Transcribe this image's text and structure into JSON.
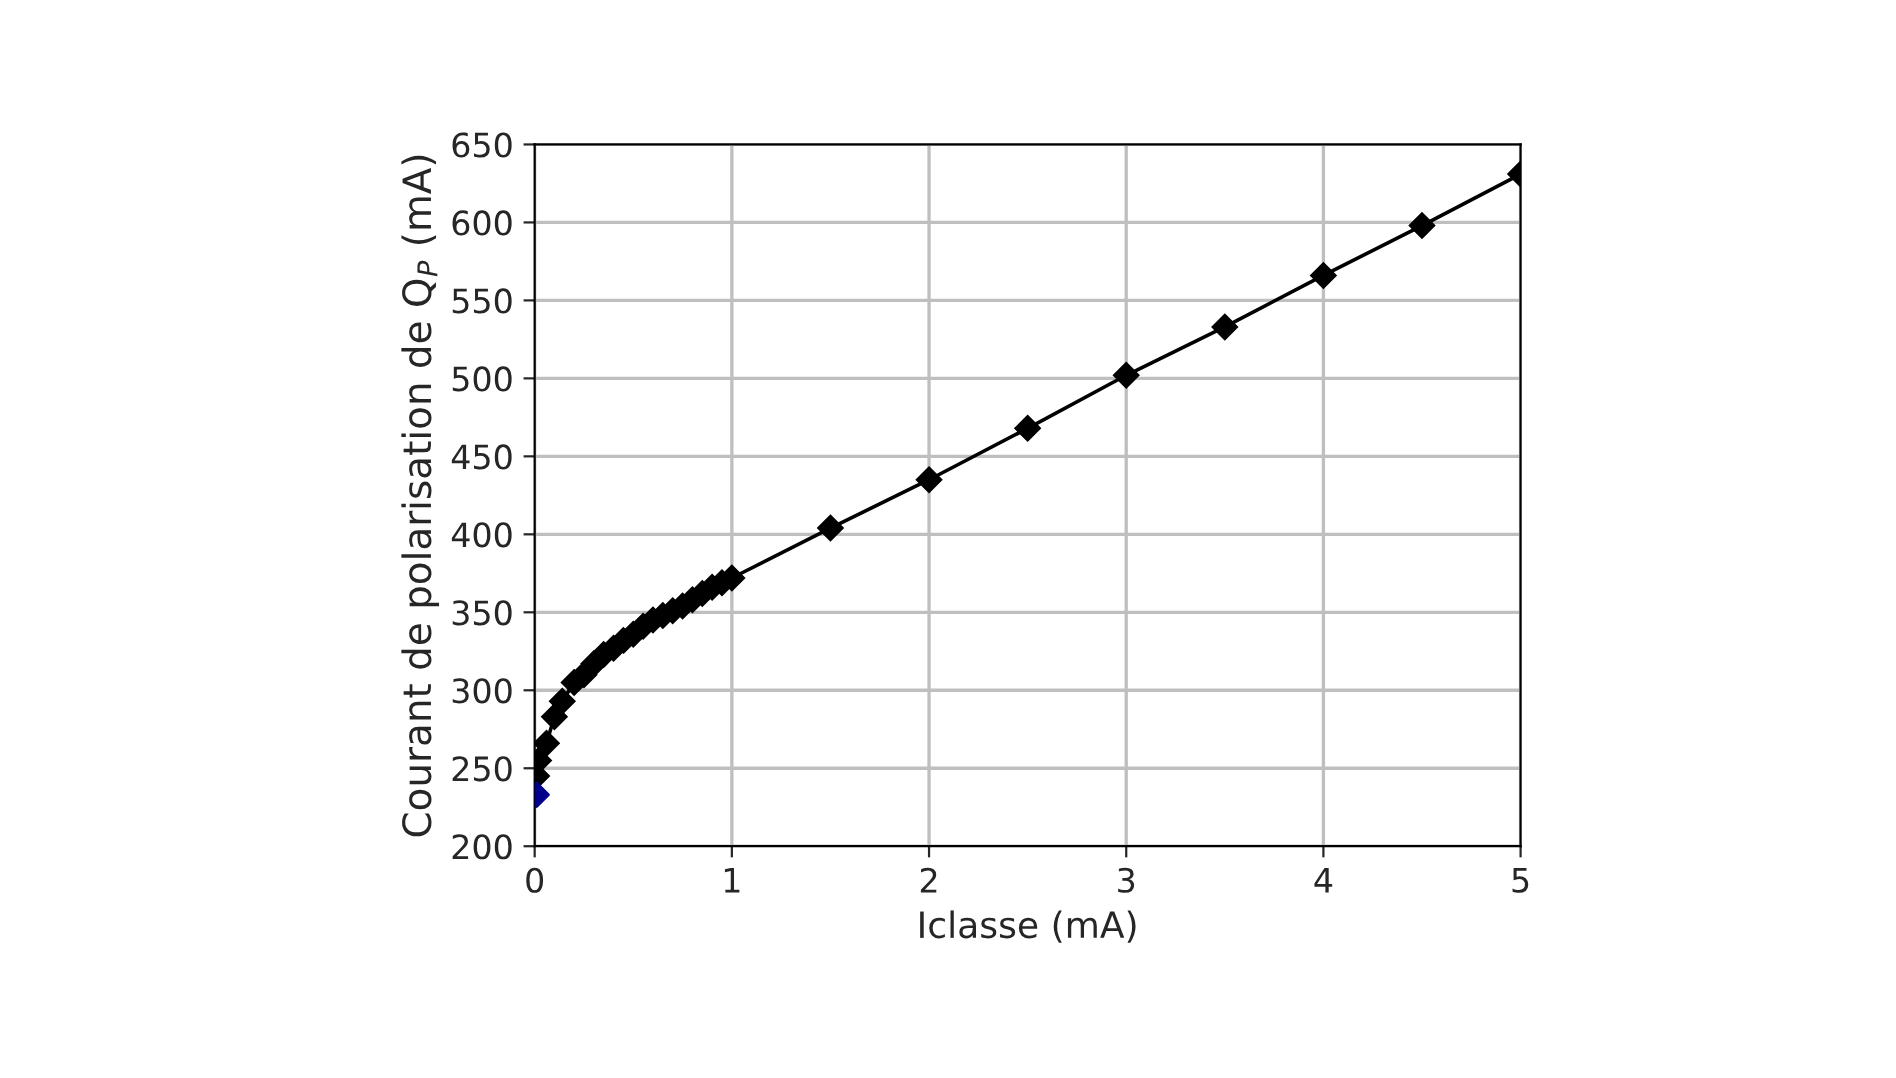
{
  "chart_data": {
    "type": "line",
    "xlabel": "Iclasse (mA)",
    "ylabel": "Courant de polarisation de Q$_{P}$ (mA)",
    "xlim": [
      0,
      5
    ],
    "xticks": [
      0,
      1,
      2,
      3,
      4,
      5
    ],
    "ylim": [
      200,
      650
    ],
    "yticks": [
      200,
      250,
      300,
      350,
      400,
      450,
      500,
      550,
      600,
      650
    ],
    "grid": true,
    "marker": "diamond",
    "line_style": "solid",
    "series": [
      {
        "color": "#000000",
        "x": [
          0.01,
          0.02,
          0.06,
          0.1,
          0.14,
          0.2,
          0.25,
          0.3,
          0.35,
          0.4,
          0.45,
          0.5,
          0.55,
          0.6,
          0.65,
          0.7,
          0.75,
          0.8,
          0.85,
          0.9,
          0.95,
          1.0,
          1.5,
          2,
          2.5,
          3,
          3.5,
          4,
          4.5,
          5
        ],
        "values": [
          245,
          255,
          266,
          283,
          293,
          305,
          310,
          317,
          323,
          327,
          332,
          336,
          341,
          345,
          348,
          351,
          354,
          358,
          362,
          366,
          369,
          372,
          404,
          435,
          468,
          502,
          533,
          566,
          598,
          631
        ]
      },
      {
        "type": "scatter",
        "color": "#00008b",
        "x": [
          0.01
        ],
        "values": [
          233
        ]
      }
    ]
  }
}
